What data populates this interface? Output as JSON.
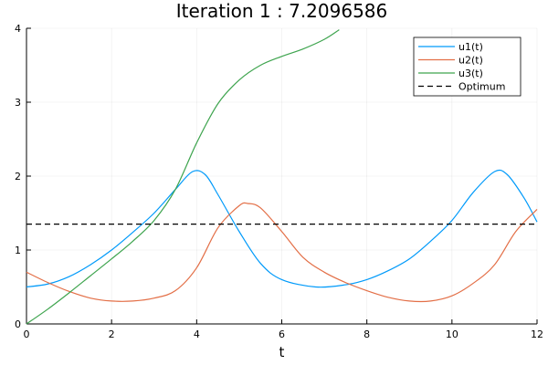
{
  "chart_data": {
    "type": "line",
    "title": "Iteration 1 : 7.2096586",
    "xlabel": "t",
    "ylabel": "",
    "xlim": [
      0,
      12
    ],
    "ylim": [
      0,
      4
    ],
    "x_ticks": [
      "0",
      "2",
      "4",
      "6",
      "8",
      "10",
      "12"
    ],
    "y_ticks": [
      "0",
      "1",
      "2",
      "3",
      "4"
    ],
    "grid": true,
    "legend_position": "top-right",
    "series": [
      {
        "name": "u1(t)",
        "color": "#009AFA",
        "dash": "solid",
        "points": [
          [
            0,
            0.5
          ],
          [
            0.5,
            0.54
          ],
          [
            1,
            0.64
          ],
          [
            1.5,
            0.8
          ],
          [
            2,
            1.0
          ],
          [
            2.5,
            1.24
          ],
          [
            3,
            1.5
          ],
          [
            3.5,
            1.82
          ],
          [
            3.9,
            2.06
          ],
          [
            4.2,
            2.02
          ],
          [
            4.5,
            1.75
          ],
          [
            5,
            1.25
          ],
          [
            5.5,
            0.82
          ],
          [
            6,
            0.6
          ],
          [
            6.8,
            0.5
          ],
          [
            7.5,
            0.53
          ],
          [
            8,
            0.6
          ],
          [
            8.5,
            0.72
          ],
          [
            9,
            0.88
          ],
          [
            9.5,
            1.12
          ],
          [
            10,
            1.4
          ],
          [
            10.5,
            1.78
          ],
          [
            11,
            2.06
          ],
          [
            11.3,
            2.02
          ],
          [
            11.7,
            1.7
          ],
          [
            12,
            1.38
          ]
        ]
      },
      {
        "name": "u2(t)",
        "color": "#E36F47",
        "dash": "solid",
        "points": [
          [
            0,
            0.7
          ],
          [
            0.5,
            0.56
          ],
          [
            1,
            0.44
          ],
          [
            1.5,
            0.35
          ],
          [
            2,
            0.31
          ],
          [
            2.5,
            0.31
          ],
          [
            3,
            0.35
          ],
          [
            3.5,
            0.45
          ],
          [
            4,
            0.76
          ],
          [
            4.5,
            1.3
          ],
          [
            5,
            1.6
          ],
          [
            5.2,
            1.63
          ],
          [
            5.5,
            1.57
          ],
          [
            6,
            1.25
          ],
          [
            6.5,
            0.9
          ],
          [
            7,
            0.7
          ],
          [
            7.5,
            0.56
          ],
          [
            8,
            0.45
          ],
          [
            8.5,
            0.36
          ],
          [
            9,
            0.31
          ],
          [
            9.5,
            0.31
          ],
          [
            10,
            0.38
          ],
          [
            10.5,
            0.55
          ],
          [
            11,
            0.8
          ],
          [
            11.5,
            1.25
          ],
          [
            12,
            1.55
          ]
        ]
      },
      {
        "name": "u3(t)",
        "color": "#3EA44E",
        "dash": "solid",
        "points": [
          [
            0,
            0.0
          ],
          [
            0.5,
            0.2
          ],
          [
            1,
            0.42
          ],
          [
            1.5,
            0.65
          ],
          [
            2,
            0.88
          ],
          [
            2.5,
            1.12
          ],
          [
            3,
            1.4
          ],
          [
            3.5,
            1.82
          ],
          [
            4,
            2.45
          ],
          [
            4.5,
            2.98
          ],
          [
            5,
            3.3
          ],
          [
            5.5,
            3.5
          ],
          [
            6,
            3.62
          ],
          [
            6.5,
            3.72
          ],
          [
            7,
            3.85
          ],
          [
            7.35,
            3.98
          ]
        ]
      },
      {
        "name": "Optimum",
        "color": "#000000",
        "dash": "dashed",
        "points": [
          [
            0,
            1.35
          ],
          [
            12,
            1.35
          ]
        ]
      }
    ]
  }
}
